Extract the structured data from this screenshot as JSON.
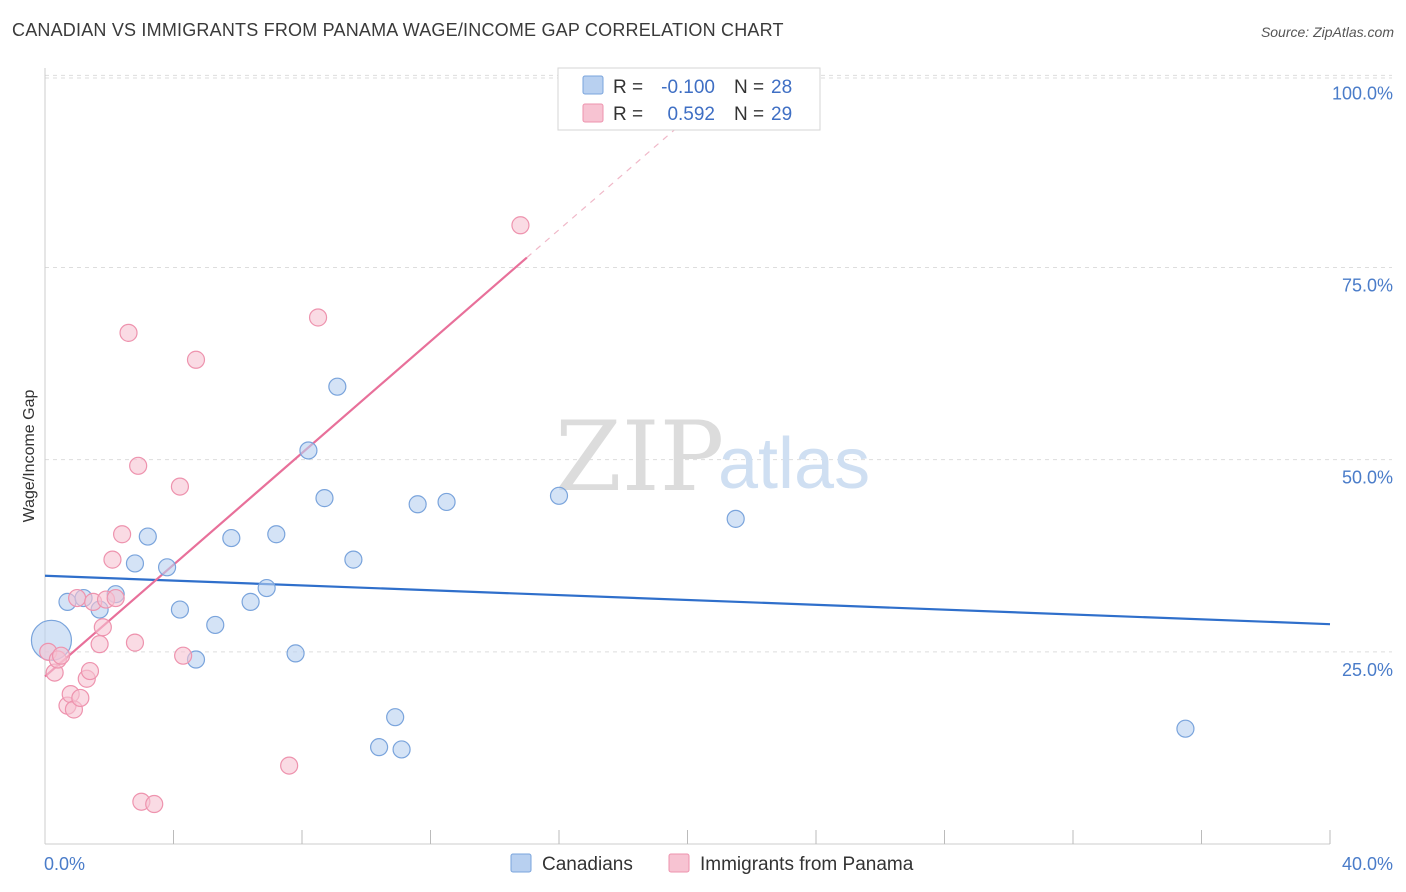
{
  "title": "CANADIAN VS IMMIGRANTS FROM PANAMA WAGE/INCOME GAP CORRELATION CHART",
  "source": "Source: ZipAtlas.com",
  "watermark": {
    "zip": "ZIP",
    "atlas": "atlas"
  },
  "colors": {
    "blue_fill": "#b8d0f0",
    "blue_stroke": "#7aa4dc",
    "blue_line": "#2f6fcb",
    "pink_fill": "#f7c3d2",
    "pink_stroke": "#ee93ae",
    "pink_line": "#e8709a",
    "grid": "#dddddd",
    "tick_text": "#4a7cc9"
  },
  "legend": {
    "rows": [
      {
        "r_label": "R =",
        "r_value": "-0.100",
        "n_label": "N =",
        "n_value": "28"
      },
      {
        "r_label": "R =",
        "r_value": "0.592",
        "n_label": "N =",
        "n_value": "29"
      }
    ]
  },
  "chart_data": {
    "type": "scatter",
    "title": "CANADIAN VS IMMIGRANTS FROM PANAMA WAGE/INCOME GAP CORRELATION CHART",
    "xlabel": "",
    "ylabel": "Wage/Income Gap",
    "xlim": [
      0,
      40
    ],
    "ylim": [
      0,
      102
    ],
    "x_tick_labels": [
      "0.0%",
      "40.0%"
    ],
    "y_ticks": [
      25,
      50,
      75,
      100
    ],
    "y_tick_labels": [
      "25.0%",
      "50.0%",
      "75.0%",
      "100.0%"
    ],
    "series": [
      {
        "name": "Canadians",
        "color": "blue",
        "points": [
          {
            "x": 0.2,
            "y": 26.5,
            "size": "large"
          },
          {
            "x": 0.7,
            "y": 31.5
          },
          {
            "x": 1.2,
            "y": 32.0
          },
          {
            "x": 1.7,
            "y": 30.5
          },
          {
            "x": 2.2,
            "y": 32.5
          },
          {
            "x": 2.8,
            "y": 36.5
          },
          {
            "x": 3.2,
            "y": 40.0
          },
          {
            "x": 3.8,
            "y": 36.0
          },
          {
            "x": 4.2,
            "y": 30.5
          },
          {
            "x": 4.7,
            "y": 24.0
          },
          {
            "x": 5.3,
            "y": 28.5
          },
          {
            "x": 5.8,
            "y": 39.8
          },
          {
            "x": 6.4,
            "y": 31.5
          },
          {
            "x": 6.9,
            "y": 33.3
          },
          {
            "x": 7.2,
            "y": 40.3
          },
          {
            "x": 7.8,
            "y": 24.8
          },
          {
            "x": 8.2,
            "y": 51.2
          },
          {
            "x": 8.7,
            "y": 45.0
          },
          {
            "x": 9.1,
            "y": 59.5
          },
          {
            "x": 9.6,
            "y": 37.0
          },
          {
            "x": 10.4,
            "y": 12.6
          },
          {
            "x": 10.9,
            "y": 16.5
          },
          {
            "x": 11.1,
            "y": 12.3
          },
          {
            "x": 11.6,
            "y": 44.2
          },
          {
            "x": 12.5,
            "y": 44.5
          },
          {
            "x": 16.0,
            "y": 45.3
          },
          {
            "x": 21.5,
            "y": 42.3
          },
          {
            "x": 35.5,
            "y": 15.0
          }
        ],
        "trend": {
          "x0": 0,
          "y0": 34.9,
          "x1": 40,
          "y1": 28.6
        }
      },
      {
        "name": "Immigrants from Panama",
        "color": "pink",
        "points": [
          {
            "x": 0.1,
            "y": 25.0
          },
          {
            "x": 0.3,
            "y": 22.3
          },
          {
            "x": 0.4,
            "y": 24.0
          },
          {
            "x": 0.5,
            "y": 24.5
          },
          {
            "x": 0.7,
            "y": 18.0
          },
          {
            "x": 0.8,
            "y": 19.5
          },
          {
            "x": 0.9,
            "y": 17.5
          },
          {
            "x": 1.0,
            "y": 32.0
          },
          {
            "x": 1.1,
            "y": 19.0
          },
          {
            "x": 1.3,
            "y": 21.5
          },
          {
            "x": 1.4,
            "y": 22.5
          },
          {
            "x": 1.5,
            "y": 31.5
          },
          {
            "x": 1.7,
            "y": 26.0
          },
          {
            "x": 1.8,
            "y": 28.2
          },
          {
            "x": 1.9,
            "y": 31.8
          },
          {
            "x": 2.1,
            "y": 37.0
          },
          {
            "x": 2.2,
            "y": 32.0
          },
          {
            "x": 2.4,
            "y": 40.3
          },
          {
            "x": 2.6,
            "y": 66.5
          },
          {
            "x": 2.8,
            "y": 26.2
          },
          {
            "x": 2.9,
            "y": 49.2
          },
          {
            "x": 3.0,
            "y": 5.5
          },
          {
            "x": 3.4,
            "y": 5.2
          },
          {
            "x": 4.2,
            "y": 46.5
          },
          {
            "x": 4.3,
            "y": 24.5
          },
          {
            "x": 4.7,
            "y": 63.0
          },
          {
            "x": 7.6,
            "y": 10.2
          },
          {
            "x": 8.5,
            "y": 68.5
          },
          {
            "x": 14.8,
            "y": 80.5
          }
        ],
        "trend": {
          "x0": 0,
          "y0": 21.8,
          "x1": 15.0,
          "y1": 76.3
        },
        "trend_extension": {
          "x0": 15.0,
          "y0": 76.3,
          "x1": 21.0,
          "y1": 98.0
        }
      }
    ]
  }
}
